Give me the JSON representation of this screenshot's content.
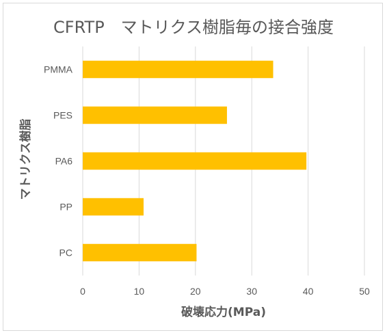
{
  "chart_data": {
    "type": "bar",
    "orientation": "horizontal",
    "title": "CFRTP　マトリクス樹脂毎の接合強度",
    "xlabel": "破壊応力(MPa)",
    "ylabel": "マトリクス樹脂",
    "categories": [
      "PMMA",
      "PES",
      "PA6",
      "PP",
      "PC"
    ],
    "values": [
      33.8,
      25.6,
      39.7,
      10.8,
      20.2
    ],
    "xlim": [
      0,
      50
    ],
    "xticks": [
      0,
      10,
      20,
      30,
      40,
      50
    ],
    "grid": true,
    "legend": "none",
    "colors": {
      "bar": "#FFC000",
      "grid": "#d9d9d9",
      "text": "#595959"
    }
  }
}
